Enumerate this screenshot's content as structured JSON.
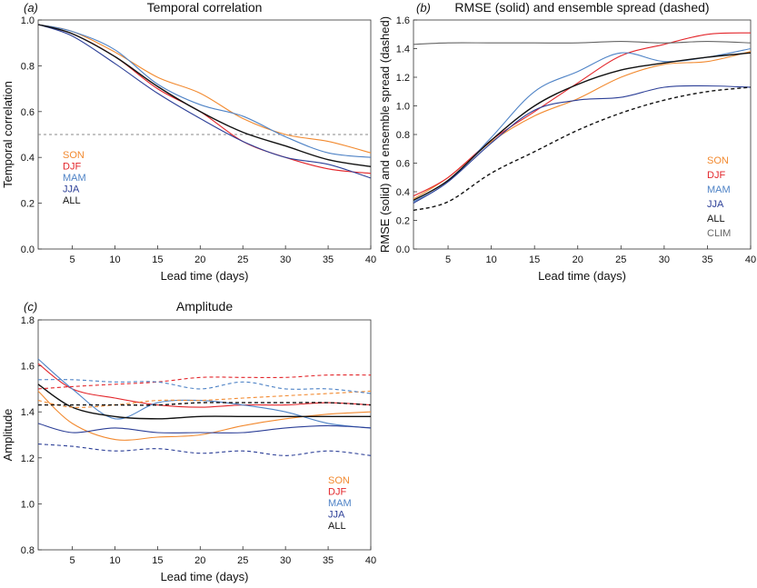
{
  "colors": {
    "SON": "#f28a30",
    "DJF": "#e3262b",
    "MAM": "#4f83c6",
    "JJA": "#2c3f97",
    "ALL": "#111111",
    "CLIM": "#666666"
  },
  "chart_data": [
    {
      "panel": "(a)",
      "type": "line",
      "title": "Temporal correlation",
      "xlabel": "Lead time (days)",
      "ylabel": "Temporal correlation",
      "xlim": [
        1,
        40
      ],
      "ylim": [
        0,
        1
      ],
      "xticks": [
        5,
        10,
        15,
        20,
        25,
        30,
        35,
        40
      ],
      "yticks": [
        0,
        0.2,
        0.4,
        0.6,
        0.8,
        1
      ],
      "ytick_labels": [
        "0.0",
        "0.2",
        "0.4",
        "0.6",
        "0.8",
        "1.0"
      ],
      "legend": {
        "placement": "left-middle",
        "entries": [
          "SON",
          "DJF",
          "MAM",
          "JJA",
          "ALL"
        ]
      },
      "reference_lines": [
        {
          "y": 0.5,
          "style": "dashed"
        }
      ],
      "x": [
        1,
        5,
        10,
        15,
        20,
        25,
        30,
        35,
        40
      ],
      "series": [
        {
          "name": "SON",
          "values": [
            0.98,
            0.95,
            0.86,
            0.75,
            0.68,
            0.57,
            0.5,
            0.47,
            0.42
          ]
        },
        {
          "name": "DJF",
          "values": [
            0.98,
            0.94,
            0.84,
            0.7,
            0.6,
            0.47,
            0.4,
            0.35,
            0.33
          ]
        },
        {
          "name": "MAM",
          "values": [
            0.98,
            0.95,
            0.87,
            0.72,
            0.63,
            0.58,
            0.49,
            0.42,
            0.4
          ]
        },
        {
          "name": "JJA",
          "values": [
            0.98,
            0.93,
            0.81,
            0.68,
            0.57,
            0.47,
            0.4,
            0.37,
            0.31
          ]
        },
        {
          "name": "ALL",
          "values": [
            0.98,
            0.94,
            0.84,
            0.71,
            0.6,
            0.51,
            0.45,
            0.39,
            0.36
          ]
        }
      ]
    },
    {
      "panel": "(b)",
      "type": "line",
      "title": "RMSE (solid) and ensemble spread (dashed)",
      "xlabel": "Lead time (days)",
      "ylabel": "RMSE (solid) and ensemble spread (dashed)",
      "xlim": [
        1,
        40
      ],
      "ylim": [
        0,
        1.6
      ],
      "xticks": [
        5,
        10,
        15,
        20,
        25,
        30,
        35,
        40
      ],
      "yticks": [
        0,
        0.2,
        0.4,
        0.6,
        0.8,
        1,
        1.2,
        1.4,
        1.6
      ],
      "ytick_labels": [
        "0.0",
        "0.2",
        "0.4",
        "0.6",
        "0.8",
        "1.0",
        "1.2",
        "1.4",
        "1.6"
      ],
      "legend": {
        "placement": "right-bottom",
        "entries": [
          "SON",
          "DJF",
          "MAM",
          "JJA",
          "ALL",
          "CLIM"
        ]
      },
      "x": [
        1,
        5,
        10,
        15,
        20,
        25,
        30,
        35,
        40
      ],
      "series": [
        {
          "name": "SON",
          "style": "solid",
          "values": [
            0.35,
            0.5,
            0.75,
            0.93,
            1.05,
            1.2,
            1.29,
            1.31,
            1.38
          ]
        },
        {
          "name": "DJF",
          "style": "solid",
          "values": [
            0.37,
            0.5,
            0.76,
            0.96,
            1.16,
            1.35,
            1.43,
            1.5,
            1.51
          ]
        },
        {
          "name": "MAM",
          "style": "solid",
          "values": [
            0.33,
            0.47,
            0.78,
            1.1,
            1.24,
            1.37,
            1.31,
            1.34,
            1.4
          ]
        },
        {
          "name": "JJA",
          "style": "solid",
          "values": [
            0.32,
            0.47,
            0.74,
            0.97,
            1.04,
            1.06,
            1.13,
            1.14,
            1.13
          ]
        },
        {
          "name": "ALL",
          "style": "solid",
          "values": [
            0.34,
            0.48,
            0.76,
            1.0,
            1.15,
            1.25,
            1.3,
            1.34,
            1.37
          ]
        },
        {
          "name": "CLIM",
          "style": "solid",
          "values": [
            1.43,
            1.44,
            1.44,
            1.44,
            1.44,
            1.45,
            1.44,
            1.45,
            1.44
          ]
        },
        {
          "name": "ALL",
          "style": "dashed",
          "values": [
            0.27,
            0.33,
            0.53,
            0.68,
            0.83,
            0.95,
            1.04,
            1.1,
            1.13
          ]
        }
      ]
    },
    {
      "panel": "(c)",
      "type": "line",
      "title": "Amplitude",
      "xlabel": "Lead time (days)",
      "ylabel": "Amplitude",
      "xlim": [
        1,
        40
      ],
      "ylim": [
        0.8,
        1.8
      ],
      "xticks": [
        5,
        10,
        15,
        20,
        25,
        30,
        35,
        40
      ],
      "yticks": [
        0.8,
        1,
        1.2,
        1.4,
        1.6,
        1.8
      ],
      "ytick_labels": [
        "0.8",
        "1.0",
        "1.2",
        "1.4",
        "1.6",
        "1.8"
      ],
      "legend": {
        "placement": "right-bottom",
        "entries": [
          "SON",
          "DJF",
          "MAM",
          "JJA",
          "ALL"
        ]
      },
      "x": [
        1,
        5,
        10,
        15,
        20,
        25,
        30,
        35,
        40
      ],
      "series": [
        {
          "name": "SON",
          "style": "solid",
          "values": [
            1.49,
            1.35,
            1.28,
            1.29,
            1.3,
            1.34,
            1.37,
            1.39,
            1.4
          ]
        },
        {
          "name": "DJF",
          "style": "solid",
          "values": [
            1.61,
            1.5,
            1.46,
            1.43,
            1.42,
            1.43,
            1.43,
            1.44,
            1.43
          ]
        },
        {
          "name": "MAM",
          "style": "solid",
          "values": [
            1.63,
            1.5,
            1.37,
            1.44,
            1.45,
            1.43,
            1.4,
            1.35,
            1.33
          ]
        },
        {
          "name": "JJA",
          "style": "solid",
          "values": [
            1.35,
            1.31,
            1.33,
            1.31,
            1.31,
            1.31,
            1.33,
            1.34,
            1.33
          ]
        },
        {
          "name": "ALL",
          "style": "solid",
          "values": [
            1.52,
            1.42,
            1.38,
            1.37,
            1.38,
            1.38,
            1.38,
            1.38,
            1.38
          ]
        },
        {
          "name": "SON",
          "style": "dashed",
          "values": [
            1.45,
            1.42,
            1.43,
            1.45,
            1.45,
            1.46,
            1.47,
            1.48,
            1.49
          ]
        },
        {
          "name": "DJF",
          "style": "dashed",
          "values": [
            1.5,
            1.51,
            1.52,
            1.53,
            1.55,
            1.55,
            1.55,
            1.56,
            1.56
          ]
        },
        {
          "name": "MAM",
          "style": "dashed",
          "values": [
            1.54,
            1.54,
            1.53,
            1.53,
            1.5,
            1.53,
            1.5,
            1.5,
            1.48
          ]
        },
        {
          "name": "JJA",
          "style": "dashed",
          "values": [
            1.26,
            1.25,
            1.23,
            1.24,
            1.22,
            1.23,
            1.21,
            1.23,
            1.21
          ]
        },
        {
          "name": "ALL",
          "style": "dashed",
          "values": [
            1.43,
            1.43,
            1.43,
            1.43,
            1.44,
            1.44,
            1.44,
            1.44,
            1.43
          ]
        }
      ]
    }
  ]
}
